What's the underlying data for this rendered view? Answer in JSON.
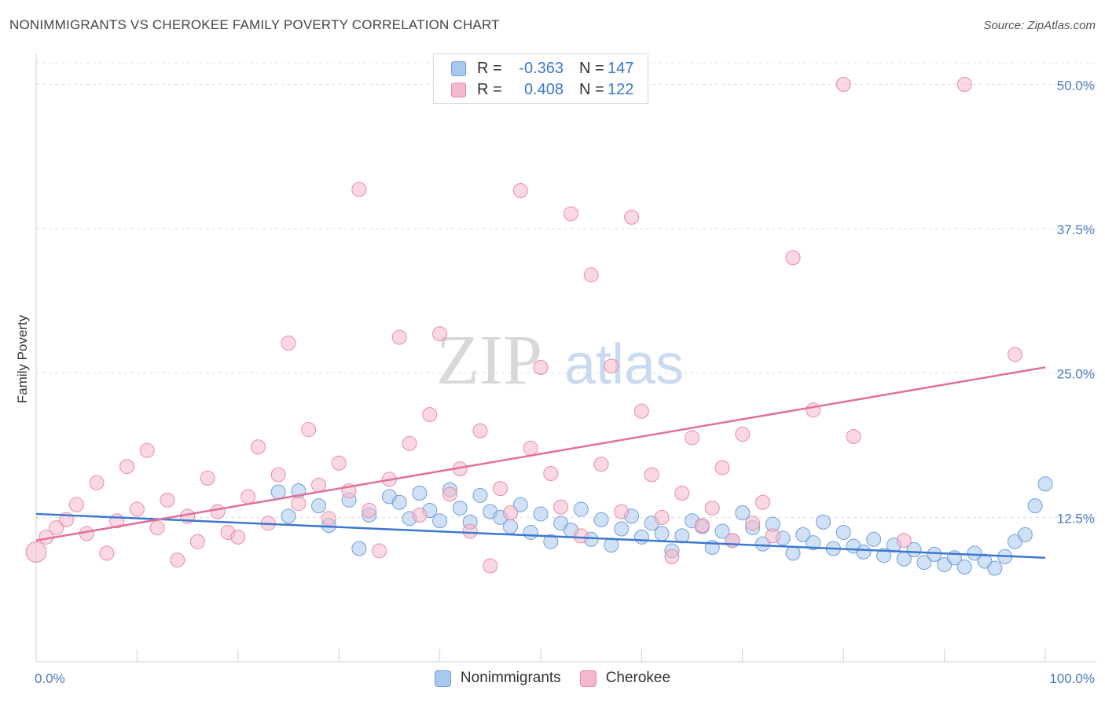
{
  "title": "NONIMMIGRANTS VS CHEROKEE FAMILY POVERTY CORRELATION CHART",
  "source": "Source: ZipAtlas.com",
  "watermark": {
    "part1": "ZIP",
    "part2": "atlas"
  },
  "colors": {
    "blue_fill": "#a9c8ef",
    "blue_stroke": "#6f9fd8",
    "blue_line": "#3b78cf",
    "pink_fill": "#f5b8cb",
    "pink_stroke": "#e88aa8",
    "pink_line": "#e0709a",
    "tick_label": "#4a7cc4"
  },
  "legend": {
    "rows": [
      {
        "r_label": "R =",
        "r_value": "-0.363",
        "n_label": "N =",
        "n_value": "147"
      },
      {
        "r_label": "R =",
        "r_value": "0.408",
        "n_label": "N =",
        "n_value": "122"
      }
    ]
  },
  "bottom_legend": {
    "nonimmigrants": "Nonimmigrants",
    "cherokee": "Cherokee"
  },
  "chart_data": {
    "type": "scatter",
    "title": "NONIMMIGRANTS VS CHEROKEE FAMILY POVERTY CORRELATION CHART",
    "xlabel": "",
    "ylabel": "Family Poverty",
    "xlim": [
      0,
      100
    ],
    "ylim": [
      0,
      52
    ],
    "x_tick_labels": [
      "0.0%",
      "100.0%"
    ],
    "y_ticks": [
      12.5,
      25.0,
      37.5,
      50.0
    ],
    "y_tick_labels": [
      "12.5%",
      "25.0%",
      "37.5%",
      "50.0%"
    ],
    "grid": true,
    "series": [
      {
        "name": "Nonimmigrants",
        "r": -0.363,
        "n": 147,
        "trend": {
          "x": [
            0,
            100
          ],
          "y": [
            12.8,
            9.0
          ]
        },
        "points": [
          [
            24,
            14.7
          ],
          [
            25,
            12.6
          ],
          [
            26,
            14.8
          ],
          [
            28,
            13.5
          ],
          [
            29,
            11.8
          ],
          [
            31,
            14.0
          ],
          [
            32,
            9.8
          ],
          [
            33,
            12.7
          ],
          [
            35,
            14.3
          ],
          [
            36,
            13.8
          ],
          [
            37,
            12.4
          ],
          [
            38,
            14.6
          ],
          [
            39,
            13.1
          ],
          [
            40,
            12.2
          ],
          [
            41,
            14.9
          ],
          [
            42,
            13.3
          ],
          [
            43,
            12.1
          ],
          [
            44,
            14.4
          ],
          [
            45,
            13.0
          ],
          [
            46,
            12.5
          ],
          [
            47,
            11.7
          ],
          [
            48,
            13.6
          ],
          [
            49,
            11.2
          ],
          [
            50,
            12.8
          ],
          [
            51,
            10.4
          ],
          [
            52,
            12.0
          ],
          [
            53,
            11.4
          ],
          [
            54,
            13.2
          ],
          [
            55,
            10.6
          ],
          [
            56,
            12.3
          ],
          [
            57,
            10.1
          ],
          [
            58,
            11.5
          ],
          [
            59,
            12.6
          ],
          [
            60,
            10.8
          ],
          [
            61,
            12.0
          ],
          [
            62,
            11.1
          ],
          [
            63,
            9.6
          ],
          [
            64,
            10.9
          ],
          [
            65,
            12.2
          ],
          [
            66,
            11.7
          ],
          [
            67,
            9.9
          ],
          [
            68,
            11.3
          ],
          [
            69,
            10.5
          ],
          [
            70,
            12.9
          ],
          [
            71,
            11.6
          ],
          [
            72,
            10.2
          ],
          [
            73,
            11.9
          ],
          [
            74,
            10.7
          ],
          [
            75,
            9.4
          ],
          [
            76,
            11.0
          ],
          [
            77,
            10.3
          ],
          [
            78,
            12.1
          ],
          [
            79,
            9.8
          ],
          [
            80,
            11.2
          ],
          [
            81,
            10.0
          ],
          [
            82,
            9.5
          ],
          [
            83,
            10.6
          ],
          [
            84,
            9.2
          ],
          [
            85,
            10.1
          ],
          [
            86,
            8.9
          ],
          [
            87,
            9.7
          ],
          [
            88,
            8.6
          ],
          [
            89,
            9.3
          ],
          [
            90,
            8.4
          ],
          [
            91,
            9.0
          ],
          [
            92,
            8.2
          ],
          [
            93,
            9.4
          ],
          [
            94,
            8.7
          ],
          [
            95,
            8.1
          ],
          [
            96,
            9.1
          ],
          [
            97,
            10.4
          ],
          [
            98,
            11.0
          ],
          [
            99,
            13.5
          ],
          [
            100,
            15.4
          ]
        ]
      },
      {
        "name": "Cherokee",
        "r": 0.408,
        "n": 122,
        "trend": {
          "x": [
            0,
            100
          ],
          "y": [
            10.5,
            25.5
          ]
        },
        "points": [
          [
            0,
            9.5
          ],
          [
            1,
            10.8
          ],
          [
            2,
            11.6
          ],
          [
            3,
            12.3
          ],
          [
            4,
            13.6
          ],
          [
            5,
            11.1
          ],
          [
            6,
            15.5
          ],
          [
            7,
            9.4
          ],
          [
            8,
            12.2
          ],
          [
            9,
            16.9
          ],
          [
            10,
            13.2
          ],
          [
            11,
            18.3
          ],
          [
            12,
            11.6
          ],
          [
            13,
            14.0
          ],
          [
            14,
            8.8
          ],
          [
            15,
            12.6
          ],
          [
            16,
            10.4
          ],
          [
            17,
            15.9
          ],
          [
            18,
            13.0
          ],
          [
            19,
            11.2
          ],
          [
            20,
            10.8
          ],
          [
            21,
            14.3
          ],
          [
            22,
            18.6
          ],
          [
            23,
            12.0
          ],
          [
            24,
            16.2
          ],
          [
            25,
            27.6
          ],
          [
            26,
            13.7
          ],
          [
            27,
            20.1
          ],
          [
            28,
            15.3
          ],
          [
            29,
            12.4
          ],
          [
            30,
            17.2
          ],
          [
            31,
            14.8
          ],
          [
            32,
            40.9
          ],
          [
            33,
            13.1
          ],
          [
            34,
            9.6
          ],
          [
            35,
            15.8
          ],
          [
            36,
            28.1
          ],
          [
            37,
            18.9
          ],
          [
            38,
            12.7
          ],
          [
            39,
            21.4
          ],
          [
            40,
            28.4
          ],
          [
            41,
            14.5
          ],
          [
            42,
            16.7
          ],
          [
            43,
            11.3
          ],
          [
            44,
            20.0
          ],
          [
            45,
            8.3
          ],
          [
            46,
            15.0
          ],
          [
            47,
            12.9
          ],
          [
            48,
            40.8
          ],
          [
            49,
            18.5
          ],
          [
            50,
            25.5
          ],
          [
            51,
            16.3
          ],
          [
            52,
            13.4
          ],
          [
            53,
            38.8
          ],
          [
            54,
            10.9
          ],
          [
            55,
            33.5
          ],
          [
            56,
            17.1
          ],
          [
            57,
            25.6
          ],
          [
            58,
            13.0
          ],
          [
            59,
            38.5
          ],
          [
            60,
            21.7
          ],
          [
            61,
            16.2
          ],
          [
            62,
            12.5
          ],
          [
            63,
            9.1
          ],
          [
            64,
            14.6
          ],
          [
            65,
            19.4
          ],
          [
            66,
            11.8
          ],
          [
            67,
            13.3
          ],
          [
            68,
            16.8
          ],
          [
            69,
            10.5
          ],
          [
            70,
            19.7
          ],
          [
            71,
            12.0
          ],
          [
            72,
            13.8
          ],
          [
            73,
            10.9
          ],
          [
            75,
            35.0
          ],
          [
            77,
            21.8
          ],
          [
            80,
            50.0
          ],
          [
            81,
            19.5
          ],
          [
            86,
            10.5
          ],
          [
            92,
            50.0
          ],
          [
            97,
            26.6
          ]
        ]
      }
    ]
  }
}
